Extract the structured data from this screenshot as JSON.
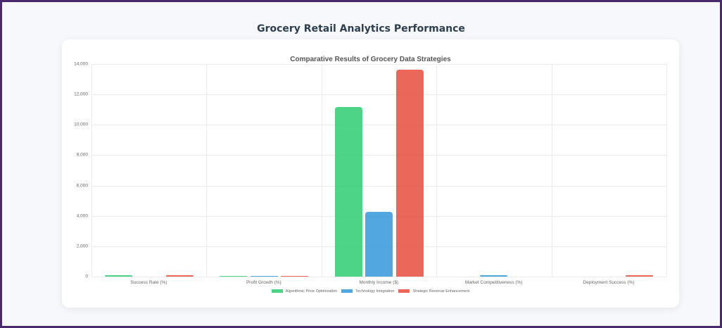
{
  "page": {
    "title": "Grocery Retail Analytics Performance"
  },
  "colors": {
    "border": "#4a2a6e",
    "green": "#2ecc71",
    "blue": "#3498db",
    "red": "#e74c3c"
  },
  "chart_data": {
    "type": "bar",
    "title": "Comparative Results of Grocery Data Strategies",
    "xlabel": "",
    "ylabel": "",
    "ylim": [
      0,
      14000
    ],
    "yticks": [
      "0",
      "2,000",
      "4,000",
      "6,000",
      "8,000",
      "10,000",
      "12,000",
      "14,000"
    ],
    "grid": true,
    "legend_position": "bottom",
    "categories": [
      "Success Rate (%)",
      "Profit Growth (%)",
      "Monthly Income ($)",
      "Market Competitiveness (%)",
      "Deployment Success (%)"
    ],
    "series": [
      {
        "name": "Algorithmic Price Optimization",
        "color": "#2ecc71",
        "values": [
          85,
          20,
          11150,
          0,
          0
        ]
      },
      {
        "name": "Technology Integration",
        "color": "#3498db",
        "values": [
          0,
          25,
          4270,
          75,
          0
        ]
      },
      {
        "name": "Strategic Revenue Enhancement",
        "color": "#e74c3c",
        "values": [
          90,
          22,
          13650,
          0,
          85
        ]
      }
    ]
  }
}
